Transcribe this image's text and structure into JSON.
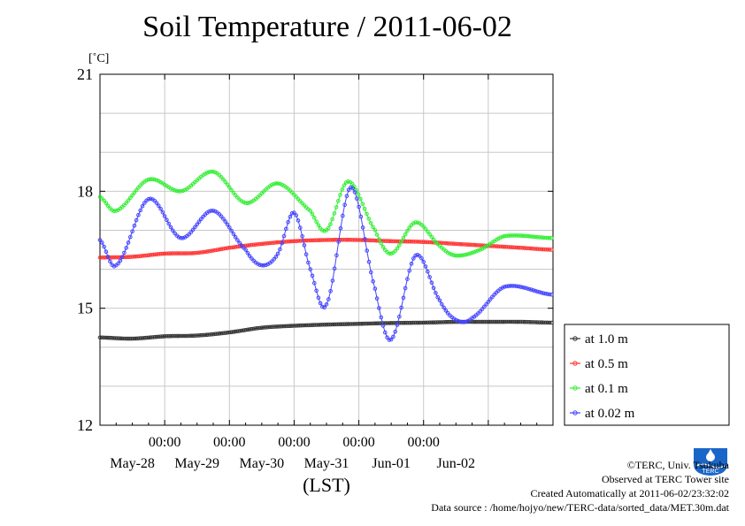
{
  "chart_data": {
    "type": "line",
    "title": "Soil Temperature / 2011-06-02",
    "ylabel": "[˚C]",
    "xlabel": "(LST)",
    "ylim": [
      12,
      21
    ],
    "yticks": [
      12,
      15,
      18,
      21
    ],
    "xlim": [
      "2011-05-27 00:00",
      "2011-06-03 00:00"
    ],
    "x_tick_labels": [
      "00:00",
      "00:00",
      "00:00",
      "00:00",
      "00:00"
    ],
    "x_date_labels": [
      "May-28",
      "May-29",
      "May-30",
      "May-31",
      "Jun-01",
      "Jun-02"
    ],
    "grid": true,
    "legend_position": "right",
    "series": [
      {
        "name": "at 1.0 m",
        "color": "#333333",
        "points": [
          [
            "2011-05-27 00:00",
            14.25
          ],
          [
            "2011-05-27 12:00",
            14.22
          ],
          [
            "2011-05-28 00:00",
            14.28
          ],
          [
            "2011-05-28 12:00",
            14.3
          ],
          [
            "2011-05-29 00:00",
            14.38
          ],
          [
            "2011-05-29 12:00",
            14.5
          ],
          [
            "2011-05-30 00:00",
            14.55
          ],
          [
            "2011-05-30 12:00",
            14.58
          ],
          [
            "2011-05-31 00:00",
            14.6
          ],
          [
            "2011-05-31 12:00",
            14.62
          ],
          [
            "2011-06-01 00:00",
            14.63
          ],
          [
            "2011-06-01 12:00",
            14.65
          ],
          [
            "2011-06-02 00:00",
            14.65
          ],
          [
            "2011-06-02 12:00",
            14.65
          ],
          [
            "2011-06-02 23:30",
            14.63
          ]
        ]
      },
      {
        "name": "at 0.5 m",
        "color": "#ff3333",
        "points": [
          [
            "2011-05-27 00:00",
            16.3
          ],
          [
            "2011-05-27 12:00",
            16.32
          ],
          [
            "2011-05-28 00:00",
            16.4
          ],
          [
            "2011-05-28 12:00",
            16.42
          ],
          [
            "2011-05-29 00:00",
            16.55
          ],
          [
            "2011-05-29 12:00",
            16.65
          ],
          [
            "2011-05-30 00:00",
            16.72
          ],
          [
            "2011-05-30 12:00",
            16.75
          ],
          [
            "2011-05-31 00:00",
            16.75
          ],
          [
            "2011-05-31 12:00",
            16.72
          ],
          [
            "2011-06-01 00:00",
            16.7
          ],
          [
            "2011-06-01 12:00",
            16.65
          ],
          [
            "2011-06-02 00:00",
            16.6
          ],
          [
            "2011-06-02 12:00",
            16.55
          ],
          [
            "2011-06-02 23:30",
            16.5
          ]
        ]
      },
      {
        "name": "at 0.1 m",
        "color": "#33ee33",
        "points": [
          [
            "2011-05-27 00:00",
            17.85
          ],
          [
            "2011-05-27 06:00",
            17.5
          ],
          [
            "2011-05-27 18:00",
            18.3
          ],
          [
            "2011-05-28 06:00",
            18.0
          ],
          [
            "2011-05-28 18:00",
            18.5
          ],
          [
            "2011-05-29 06:00",
            17.7
          ],
          [
            "2011-05-29 18:00",
            18.2
          ],
          [
            "2011-05-30 06:00",
            17.5
          ],
          [
            "2011-05-30 12:00",
            17.0
          ],
          [
            "2011-05-30 20:00",
            18.25
          ],
          [
            "2011-05-31 06:00",
            17.0
          ],
          [
            "2011-05-31 12:00",
            16.4
          ],
          [
            "2011-05-31 21:00",
            17.2
          ],
          [
            "2011-06-01 06:00",
            16.6
          ],
          [
            "2011-06-01 12:00",
            16.35
          ],
          [
            "2011-06-01 21:00",
            16.5
          ],
          [
            "2011-06-02 06:00",
            16.85
          ],
          [
            "2011-06-02 23:30",
            16.8
          ]
        ]
      },
      {
        "name": "at 0.02 m",
        "color": "#4444ff",
        "points": [
          [
            "2011-05-27 00:00",
            16.75
          ],
          [
            "2011-05-27 06:00",
            16.1
          ],
          [
            "2011-05-27 18:00",
            17.8
          ],
          [
            "2011-05-28 06:00",
            16.8
          ],
          [
            "2011-05-28 18:00",
            17.5
          ],
          [
            "2011-05-29 06:00",
            16.5
          ],
          [
            "2011-05-29 12:00",
            16.1
          ],
          [
            "2011-05-29 18:00",
            16.4
          ],
          [
            "2011-05-30 00:00",
            17.45
          ],
          [
            "2011-05-30 06:00",
            16.0
          ],
          [
            "2011-05-30 12:00",
            15.1
          ],
          [
            "2011-05-30 21:00",
            18.1
          ],
          [
            "2011-05-31 06:00",
            15.5
          ],
          [
            "2011-05-31 12:00",
            14.2
          ],
          [
            "2011-05-31 21:00",
            16.35
          ],
          [
            "2011-06-01 06:00",
            15.2
          ],
          [
            "2011-06-01 12:00",
            14.7
          ],
          [
            "2011-06-01 18:00",
            14.75
          ],
          [
            "2011-06-02 06:00",
            15.55
          ],
          [
            "2011-06-02 23:30",
            15.35
          ]
        ]
      }
    ]
  },
  "credits": {
    "copyright": "©TERC, Univ. Tsukuba",
    "observed": "Observed at TERC Tower site",
    "created": "Created Automatically at 2011-06-02/23:32:02",
    "source": "Data source : /home/hojyo/new/TERC-data/sorted_data/MET.30m.dat"
  },
  "logo": {
    "text": "TERC"
  }
}
